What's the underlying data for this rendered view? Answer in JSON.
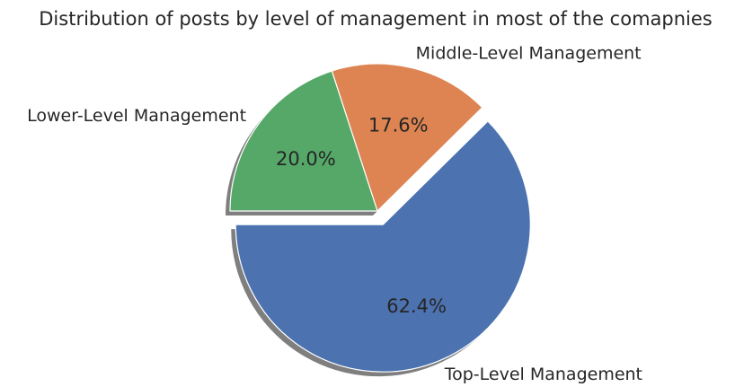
{
  "chart_data": {
    "type": "pie",
    "title": "Distribution of posts by level of management in most of the comapnies",
    "categories": [
      "Top-Level Management",
      "Middle-Level Management",
      "Lower-Level Management"
    ],
    "values": [
      62.4,
      17.6,
      20.0
    ],
    "value_labels": [
      "62.4%",
      "17.6%",
      "20.0%"
    ],
    "colors": [
      "#4c72b0",
      "#dd8452",
      "#55a868"
    ],
    "explode": [
      0.1,
      0,
      0
    ],
    "start_angle": 180,
    "counterclock": true,
    "shadow": true,
    "legend": false
  }
}
